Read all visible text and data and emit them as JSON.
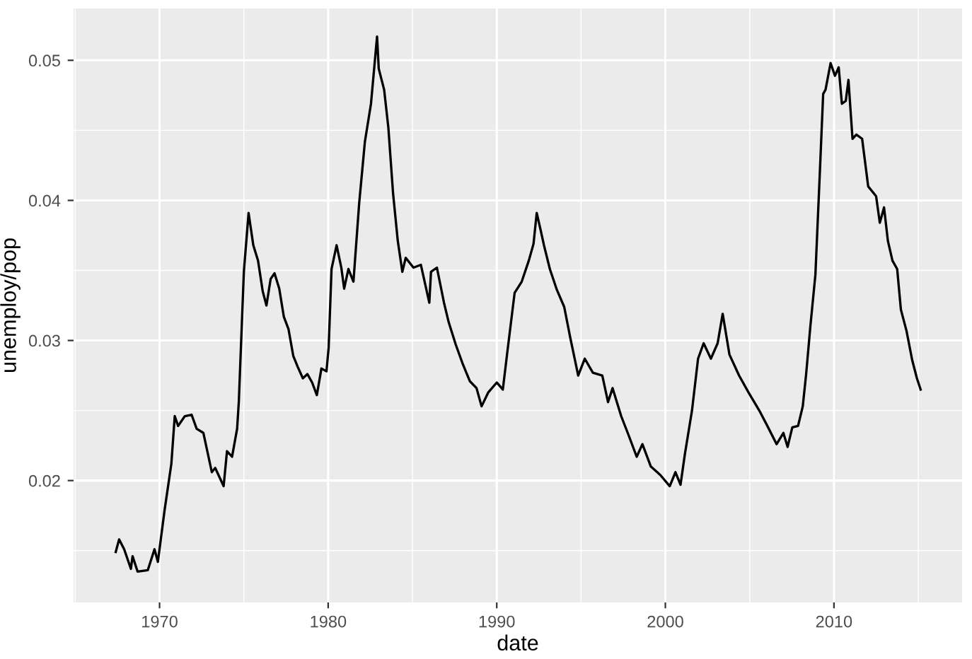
{
  "chart_data": {
    "type": "line",
    "xlabel": "date",
    "ylabel": "unemploy/pop",
    "grid": true,
    "xlim": [
      1964.9,
      2017.6
    ],
    "ylim": [
      0.0113,
      0.0537
    ],
    "xticks": [
      1970,
      1980,
      1990,
      2000,
      2010
    ],
    "yticks": [
      0.02,
      0.03,
      0.04,
      0.05
    ],
    "series": [
      {
        "color": "#000000",
        "x": [
          1967.4,
          1967.6,
          1967.9,
          1968.3,
          1968.4,
          1968.7,
          1969.3,
          1969.7,
          1969.9,
          1970.3,
          1970.7,
          1970.9,
          1971.1,
          1971.5,
          1971.9,
          1972.2,
          1972.6,
          1973.1,
          1973.3,
          1973.8,
          1974.0,
          1974.3,
          1974.6,
          1974.7,
          1975.0,
          1975.28,
          1975.56,
          1975.84,
          1976.12,
          1976.34,
          1976.59,
          1976.82,
          1977.1,
          1977.37,
          1977.65,
          1977.93,
          1978.2,
          1978.5,
          1978.77,
          1979.05,
          1979.33,
          1979.6,
          1979.9,
          1980.03,
          1980.2,
          1980.5,
          1980.78,
          1980.95,
          1981.2,
          1981.5,
          1981.84,
          1982.18,
          1982.54,
          1982.9,
          1983.0,
          1983.32,
          1983.57,
          1983.85,
          1984.13,
          1984.4,
          1984.6,
          1985.06,
          1985.5,
          1986.0,
          1986.1,
          1986.45,
          1986.87,
          1987.15,
          1987.57,
          1987.99,
          1988.4,
          1988.8,
          1989.1,
          1989.5,
          1990.0,
          1990.36,
          1990.64,
          1991.06,
          1991.48,
          1991.9,
          1992.18,
          1992.37,
          1992.6,
          1992.8,
          1993.15,
          1993.57,
          1994.0,
          1994.36,
          1994.83,
          1995.22,
          1995.7,
          1996.26,
          1996.6,
          1996.87,
          1997.38,
          1997.8,
          1998.3,
          1998.64,
          1999.14,
          1999.7,
          2000.26,
          2000.6,
          2000.9,
          2001.16,
          2001.58,
          2001.94,
          2002.27,
          2002.7,
          2003.1,
          2003.4,
          2003.8,
          2004.37,
          2004.93,
          2005.57,
          2006.05,
          2006.6,
          2007.0,
          2007.25,
          2007.53,
          2007.87,
          2008.15,
          2008.35,
          2008.6,
          2008.9,
          2009.17,
          2009.36,
          2009.5,
          2009.8,
          2010.06,
          2010.28,
          2010.47,
          2010.7,
          2010.86,
          2011.1,
          2011.33,
          2011.67,
          2012.03,
          2012.5,
          2012.72,
          2012.97,
          2013.2,
          2013.47,
          2013.75,
          2013.97,
          2014.3,
          2014.64,
          2014.92,
          2015.14
        ],
        "values": [
          0.0149,
          0.0158,
          0.0151,
          0.0137,
          0.0146,
          0.0135,
          0.0136,
          0.0151,
          0.0142,
          0.0179,
          0.0212,
          0.0246,
          0.0239,
          0.0246,
          0.0247,
          0.0237,
          0.0234,
          0.0206,
          0.0209,
          0.0196,
          0.0221,
          0.0217,
          0.0237,
          0.0256,
          0.0349,
          0.0391,
          0.0368,
          0.0357,
          0.0335,
          0.0325,
          0.0344,
          0.0348,
          0.0337,
          0.0317,
          0.0308,
          0.0289,
          0.0281,
          0.0273,
          0.0276,
          0.027,
          0.0261,
          0.028,
          0.0278,
          0.0295,
          0.0351,
          0.0368,
          0.0352,
          0.0337,
          0.0351,
          0.0342,
          0.0398,
          0.0442,
          0.0469,
          0.0517,
          0.0494,
          0.0479,
          0.0452,
          0.0405,
          0.0371,
          0.0349,
          0.0359,
          0.0352,
          0.0354,
          0.0327,
          0.0349,
          0.0352,
          0.0327,
          0.0313,
          0.0297,
          0.0283,
          0.0271,
          0.0266,
          0.0253,
          0.0263,
          0.027,
          0.0265,
          0.0293,
          0.0334,
          0.0342,
          0.0357,
          0.0369,
          0.0391,
          0.0379,
          0.0368,
          0.0351,
          0.0336,
          0.0324,
          0.0302,
          0.0275,
          0.0287,
          0.0277,
          0.0275,
          0.0256,
          0.0266,
          0.0246,
          0.0233,
          0.0217,
          0.0226,
          0.021,
          0.0204,
          0.0196,
          0.0206,
          0.0197,
          0.0219,
          0.025,
          0.0287,
          0.0298,
          0.0287,
          0.0298,
          0.0319,
          0.029,
          0.0275,
          0.0263,
          0.025,
          0.0239,
          0.0226,
          0.0234,
          0.0224,
          0.0238,
          0.0239,
          0.0253,
          0.0276,
          0.031,
          0.0347,
          0.0422,
          0.0476,
          0.0479,
          0.0498,
          0.0489,
          0.0495,
          0.0469,
          0.0471,
          0.0486,
          0.0444,
          0.0447,
          0.0444,
          0.041,
          0.0403,
          0.0384,
          0.0395,
          0.0371,
          0.0357,
          0.0351,
          0.0322,
          0.0307,
          0.0286,
          0.0273,
          0.0265
        ]
      }
    ]
  }
}
